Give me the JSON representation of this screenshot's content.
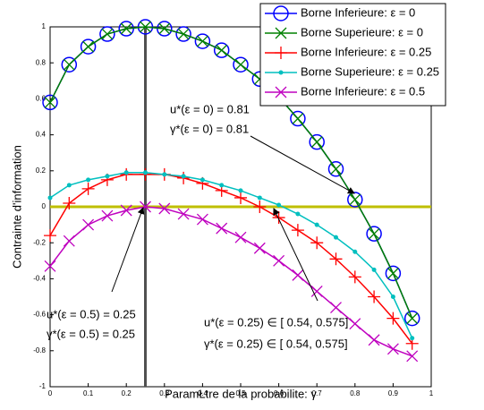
{
  "chart_data": {
    "type": "line",
    "x_label": "ParamŁtre de la probabilite: γ",
    "y_label": "Contrainte d'information",
    "xlim": [
      0,
      1
    ],
    "ylim": [
      -1,
      1
    ],
    "xticks": [
      0,
      0.1,
      0.2,
      0.3,
      0.4,
      0.5,
      0.6,
      0.7,
      0.8,
      0.9,
      1
    ],
    "yticks": [
      -1,
      -0.8,
      -0.6,
      -0.4,
      -0.2,
      0,
      0.2,
      0.4,
      0.6,
      0.8,
      1
    ],
    "x": [
      0,
      0.05,
      0.1,
      0.15,
      0.2,
      0.25,
      0.3,
      0.35,
      0.4,
      0.45,
      0.5,
      0.55,
      0.6,
      0.65,
      0.7,
      0.75,
      0.8,
      0.85,
      0.9,
      0.95
    ],
    "series": [
      {
        "name": "Borne Inferieure: ε = 0",
        "color": "#0000ff",
        "marker": "circle",
        "values": [
          0.58,
          0.79,
          0.89,
          0.96,
          0.99,
          1.0,
          0.99,
          0.96,
          0.92,
          0.87,
          0.79,
          0.71,
          0.61,
          0.49,
          0.36,
          0.21,
          0.04,
          -0.15,
          -0.37,
          -0.62
        ]
      },
      {
        "name": "Borne Superieure: ε = 0",
        "color": "#008000",
        "marker": "x",
        "values": [
          0.58,
          0.79,
          0.89,
          0.96,
          0.99,
          1.0,
          0.99,
          0.96,
          0.92,
          0.87,
          0.79,
          0.71,
          0.61,
          0.49,
          0.36,
          0.21,
          0.04,
          -0.15,
          -0.37,
          -0.62
        ]
      },
      {
        "name": "Borne Inferieure: ε = 0.25",
        "color": "#ff0000",
        "marker": "plus",
        "values": [
          -0.16,
          0.02,
          0.1,
          0.15,
          0.18,
          0.18,
          0.18,
          0.16,
          0.13,
          0.09,
          0.05,
          0.0,
          -0.06,
          -0.13,
          -0.2,
          -0.29,
          -0.39,
          -0.5,
          -0.62,
          -0.76
        ]
      },
      {
        "name": "Borne Superieure: ε = 0.25",
        "color": "#00bfbf",
        "marker": "dot",
        "values": [
          0.05,
          0.12,
          0.15,
          0.17,
          0.19,
          0.19,
          0.18,
          0.17,
          0.15,
          0.12,
          0.09,
          0.05,
          0.01,
          -0.04,
          -0.1,
          -0.17,
          -0.25,
          -0.35,
          -0.5,
          -0.73
        ]
      },
      {
        "name": "Borne Inferieure: ε = 0.5",
        "color": "#bf00bf",
        "marker": "x",
        "values": [
          -0.33,
          -0.19,
          -0.1,
          -0.05,
          -0.02,
          0.0,
          -0.01,
          -0.04,
          -0.07,
          -0.12,
          -0.17,
          -0.23,
          -0.3,
          -0.38,
          -0.47,
          -0.56,
          -0.65,
          -0.74,
          -0.79,
          -0.83
        ]
      }
    ],
    "hline": {
      "value": 0,
      "color": "#bfbf00"
    },
    "vline": {
      "value": 0.25,
      "color": "#505050"
    },
    "annotations": [
      [
        "u*(ε = 0) = 0.81",
        "γ*(ε = 0) = 0.81"
      ],
      [
        "u*(ε = 0.5) = 0.25",
        "γ*(ε = 0.5) = 0.25"
      ],
      [
        "u*(ε = 0.25) ∈  [ 0.54,  0.575]",
        "γ*(ε = 0.25) ∈  [ 0.54,  0.575]"
      ]
    ]
  }
}
